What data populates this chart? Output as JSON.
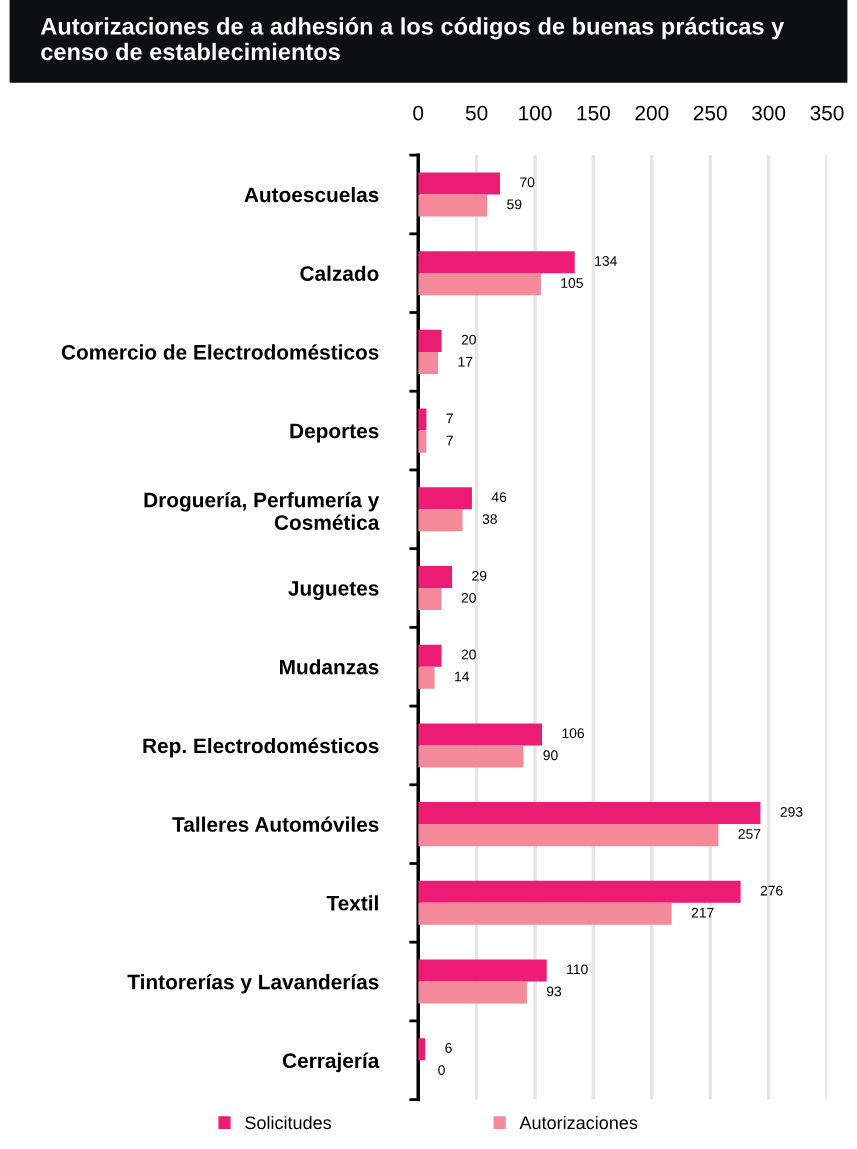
{
  "chart_data": {
    "type": "bar",
    "orientation": "horizontal",
    "title": "Autorizaciones de a adhesión a los códigos de buenas prácticas y censo de establecimientos",
    "categories": [
      "Autoescuelas",
      "Calzado",
      "Comercio de Electrodomésticos",
      "Deportes",
      "Droguería, Perfumería y\nCosmética",
      "Juguetes",
      "Mudanzas",
      "Rep. Electrodomésticos",
      "Talleres Automóviles",
      "Textil",
      "Tintorerías y Lavanderías",
      "Cerrajería"
    ],
    "series": [
      {
        "name": "Solicitudes",
        "color": "#ec1c74",
        "values": [
          70,
          134,
          20,
          7,
          46,
          29,
          20,
          106,
          293,
          276,
          110,
          6
        ]
      },
      {
        "name": "Autorizaciones",
        "color": "#f4899a",
        "values": [
          59,
          105,
          17,
          7,
          38,
          20,
          14,
          90,
          257,
          217,
          93,
          0
        ]
      }
    ],
    "xlim": [
      0,
      350
    ],
    "xticks": [
      0,
      50,
      100,
      150,
      200,
      250,
      300,
      350
    ],
    "grid": "x",
    "legend": "bottom",
    "data_labels": true
  }
}
